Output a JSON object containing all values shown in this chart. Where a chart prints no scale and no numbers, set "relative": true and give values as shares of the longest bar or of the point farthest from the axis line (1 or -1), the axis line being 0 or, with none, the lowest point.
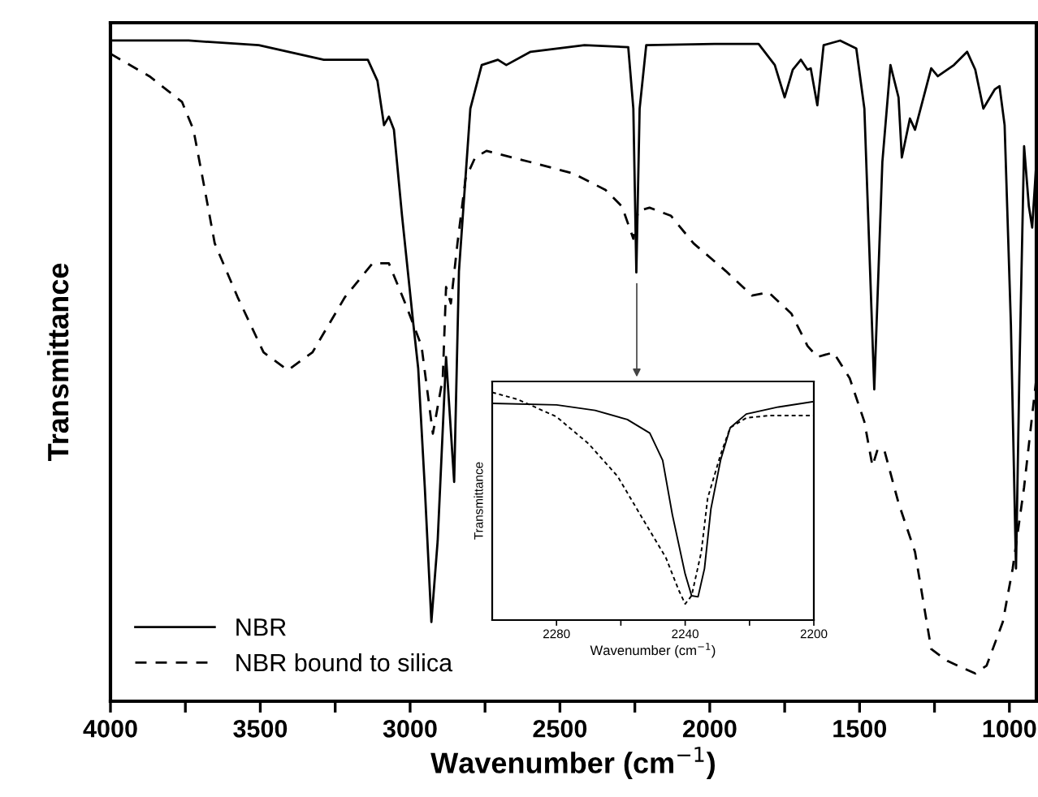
{
  "chart_data": [
    {
      "type": "line",
      "relative": true,
      "xlabel": "Wavenumber (cm$^{−1}$)",
      "ylabel": "Transmittance",
      "xlim": [
        4000,
        910
      ],
      "xticks": [
        4000,
        {
          "value": 3750,
          "label": null
        },
        3500,
        {
          "value": 3250,
          "label": null
        },
        3000,
        {
          "value": 2750,
          "label": null
        },
        2500,
        {
          "value": 2250,
          "label": null
        },
        2000,
        {
          "value": 1750,
          "label": null
        },
        1500,
        {
          "value": 1250,
          "label": null
        },
        1000
      ],
      "legend": "bottom left",
      "grid": false,
      "series": [
        {
          "name": "NBR",
          "color": "#000000",
          "line_style": "solid",
          "x": [
            4000,
            3739,
            3505,
            3288,
            3141,
            3109,
            3087,
            3071,
            3054,
            3027,
            2989,
            2973,
            2951,
            2929,
            2908,
            2880,
            2853,
            2837,
            2799,
            2761,
            2707,
            2679,
            2598,
            2418,
            2272,
            2255,
            2245,
            2234,
            2212,
            1984,
            1837,
            1783,
            1750,
            1723,
            1696,
            1674,
            1663,
            1641,
            1620,
            1565,
            1511,
            1484,
            1451,
            1424,
            1397,
            1370,
            1359,
            1332,
            1315,
            1261,
            1239,
            1185,
            1141,
            1114,
            1087,
            1049,
            1033,
            1016,
            995,
            978,
            967,
            951,
            935,
            924,
            910
          ],
          "values": [
            1.0,
            1.0,
            0.993,
            0.971,
            0.971,
            0.939,
            0.872,
            0.885,
            0.865,
            0.735,
            0.57,
            0.504,
            0.324,
            0.12,
            0.243,
            0.521,
            0.332,
            0.651,
            0.897,
            0.963,
            0.971,
            0.963,
            0.983,
            0.993,
            0.99,
            0.897,
            0.649,
            0.897,
            0.993,
            0.995,
            0.995,
            0.963,
            0.914,
            0.956,
            0.971,
            0.956,
            0.958,
            0.902,
            0.993,
            1.0,
            0.988,
            0.897,
            0.472,
            0.816,
            0.963,
            0.914,
            0.823,
            0.882,
            0.865,
            0.958,
            0.946,
            0.963,
            0.983,
            0.956,
            0.897,
            0.926,
            0.931,
            0.872,
            0.57,
            0.201,
            0.489,
            0.84,
            0.749,
            0.717,
            0.816
          ]
        },
        {
          "name": "NBR bound to silica",
          "color": "#000000",
          "line_style": "dashed",
          "x": [
            4000,
            3870,
            3761,
            3723,
            3685,
            3652,
            3576,
            3489,
            3408,
            3326,
            3217,
            3125,
            3071,
            3016,
            2962,
            2924,
            2891,
            2880,
            2864,
            2842,
            2815,
            2783,
            2745,
            2598,
            2457,
            2348,
            2293,
            2255,
            2239,
            2201,
            2130,
            2054,
            1946,
            1859,
            1804,
            1728,
            1674,
            1641,
            1587,
            1533,
            1484,
            1457,
            1440,
            1418,
            1370,
            1315,
            1261,
            1207,
            1114,
            1076,
            1022,
            989,
            951,
            910
          ],
          "values": [
            0.98,
            0.946,
            0.907,
            0.865,
            0.774,
            0.693,
            0.612,
            0.528,
            0.501,
            0.528,
            0.612,
            0.663,
            0.663,
            0.602,
            0.538,
            0.405,
            0.489,
            0.627,
            0.602,
            0.693,
            0.791,
            0.823,
            0.833,
            0.816,
            0.799,
            0.774,
            0.749,
            0.7,
            0.742,
            0.747,
            0.735,
            0.693,
            0.651,
            0.614,
            0.619,
            0.587,
            0.538,
            0.521,
            0.528,
            0.489,
            0.423,
            0.356,
            0.381,
            0.381,
            0.3,
            0.226,
            0.079,
            0.061,
            0.042,
            0.054,
            0.12,
            0.201,
            0.324,
            0.489
          ]
        }
      ]
    },
    {
      "type": "line",
      "relative": true,
      "xlabel": "Wavenumber (cm$^{−1}$)",
      "ylabel": "Transmittance",
      "xlim": [
        2300,
        2200
      ],
      "xticks": [
        2280,
        {
          "value": 2260,
          "label": null
        },
        2240,
        {
          "value": 2220,
          "label": null
        },
        2200
      ],
      "grid": false,
      "series": [
        {
          "color": "#000000",
          "line_style": "solid",
          "x": [
            2300,
            2280,
            2268,
            2258,
            2251,
            2247,
            2244,
            2240,
            2238,
            2236,
            2234,
            2232,
            2229,
            2226,
            2221,
            2211,
            2200
          ],
          "values": [
            0.952,
            0.945,
            0.921,
            0.881,
            0.821,
            0.702,
            0.464,
            0.202,
            0.107,
            0.102,
            0.226,
            0.488,
            0.702,
            0.845,
            0.905,
            0.936,
            0.96
          ]
        },
        {
          "color": "#000000",
          "line_style": "dotted",
          "x": [
            2300,
            2292,
            2280,
            2270,
            2261,
            2253,
            2246,
            2242,
            2240,
            2238,
            2235,
            2233,
            2229,
            2226,
            2221,
            2214,
            2200
          ],
          "values": [
            1.0,
            0.969,
            0.893,
            0.774,
            0.631,
            0.44,
            0.274,
            0.131,
            0.071,
            0.107,
            0.298,
            0.536,
            0.726,
            0.845,
            0.888,
            0.898,
            0.898
          ]
        }
      ]
    }
  ]
}
